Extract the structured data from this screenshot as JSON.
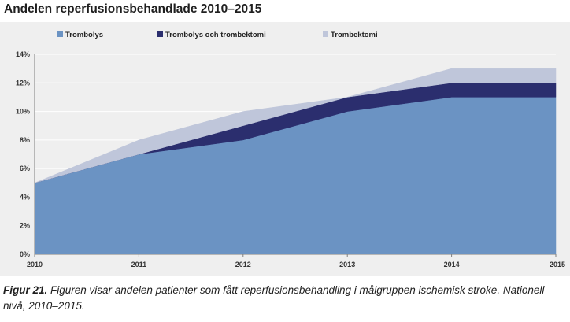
{
  "chart_data": {
    "type": "area",
    "stacked": true,
    "title": "Andelen reperfusionsbehandlade 2010–2015",
    "xlabel": "",
    "ylabel": "",
    "x": [
      "2010",
      "2011",
      "2012",
      "2013",
      "2014",
      "2015"
    ],
    "series": [
      {
        "name": "Trombolys",
        "values": [
          5,
          7,
          8,
          10,
          11,
          11
        ],
        "color": "#6b93c3"
      },
      {
        "name": "Trombolys och trombektomi",
        "values": [
          0,
          0,
          1,
          1,
          1,
          1
        ],
        "color": "#2b2e6e"
      },
      {
        "name": "Trombektomi",
        "values": [
          0,
          1,
          1,
          0,
          1,
          1
        ],
        "color": "#bfc6da"
      }
    ],
    "ylim": [
      0,
      14
    ],
    "yticks": [
      0,
      2,
      4,
      6,
      8,
      10,
      12,
      14
    ],
    "ytick_labels": [
      "0%",
      "2%",
      "4%",
      "6%",
      "8%",
      "10%",
      "12%",
      "14%"
    ],
    "grid": true,
    "legend_position": "top",
    "background": "#efefef",
    "grid_color": "#ffffff"
  },
  "caption": {
    "label": "Figur 21.",
    "text": " Figuren visar andelen patienter som fått reperfusionsbehandling i målgruppen ischemisk stroke. Nationell nivå, 2010–2015."
  }
}
